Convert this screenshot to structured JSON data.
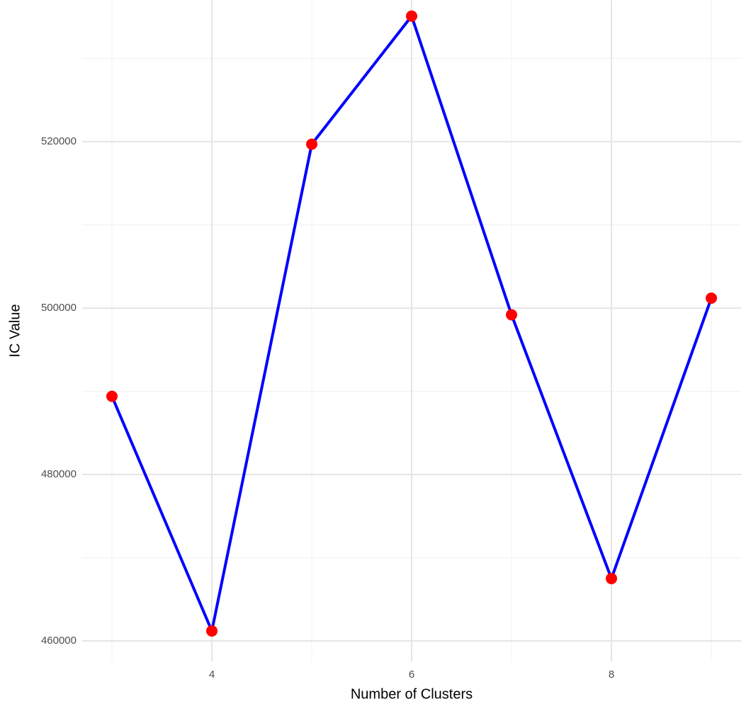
{
  "chart_data": {
    "type": "line",
    "x": [
      3,
      4,
      5,
      6,
      7,
      8,
      9
    ],
    "series": [
      {
        "color": "#0000ff",
        "point_color": "#ff0000",
        "values": [
          489400,
          461200,
          519700,
          535100,
          499200,
          467500,
          501200
        ]
      }
    ],
    "xlabel": "Number of Clusters",
    "ylabel": "IC Value",
    "xlim": [
      2.7,
      9.3
    ],
    "xticks": [
      4,
      6,
      8
    ],
    "ylim": [
      457500,
      537000
    ],
    "yticks": [
      460000,
      480000,
      500000,
      520000
    ],
    "grid": true
  }
}
